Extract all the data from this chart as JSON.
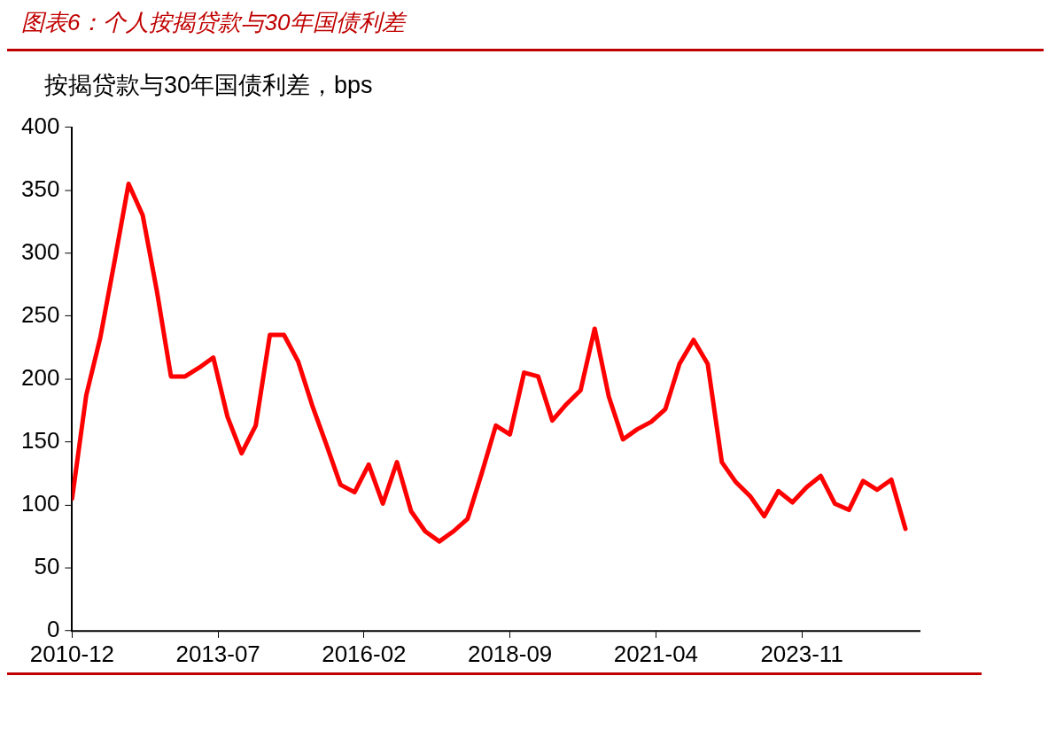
{
  "chart_data": {
    "type": "line",
    "title": "图表6：个人按揭贷款与30年国债利差",
    "subtitle": "按揭贷款与30年国债利差，bps",
    "x": [
      "2010-12",
      "2011-03",
      "2011-06",
      "2011-09",
      "2011-12",
      "2012-03",
      "2012-06",
      "2012-09",
      "2012-12",
      "2013-03",
      "2013-06",
      "2013-09",
      "2013-12",
      "2014-03",
      "2014-06",
      "2014-09",
      "2014-12",
      "2015-03",
      "2015-06",
      "2015-09",
      "2015-12",
      "2016-03",
      "2016-06",
      "2016-09",
      "2016-12",
      "2017-03",
      "2017-06",
      "2017-09",
      "2017-12",
      "2018-03",
      "2018-06",
      "2018-09",
      "2018-12",
      "2019-03",
      "2019-06",
      "2019-09",
      "2019-12",
      "2020-03",
      "2020-06",
      "2020-09",
      "2020-12",
      "2021-03",
      "2021-06",
      "2021-09",
      "2021-12",
      "2022-03",
      "2022-06",
      "2022-09",
      "2022-12",
      "2023-03",
      "2023-06",
      "2023-09",
      "2023-12",
      "2024-03",
      "2024-06",
      "2024-09",
      "2024-12",
      "2025-03",
      "2025-06",
      "2025-09"
    ],
    "series": [
      {
        "color": "#ff0000",
        "values": [
          105,
          187,
          233,
          293,
          355,
          330,
          270,
          202,
          202,
          209,
          217,
          170,
          141,
          163,
          235,
          235,
          214,
          179,
          148,
          116,
          110,
          132,
          101,
          134,
          95,
          79,
          71,
          79,
          89,
          125,
          163,
          156,
          205,
          202,
          167,
          180,
          191,
          240,
          186,
          152,
          160,
          166,
          176,
          212,
          231,
          212,
          134,
          118,
          107,
          91,
          111,
          102,
          114,
          123,
          101,
          96,
          119,
          112,
          120,
          81
        ]
      }
    ],
    "xlim": [
      "2010-12",
      "2025-12"
    ],
    "xticks": [
      "2010-12",
      "2013-07",
      "2016-02",
      "2018-09",
      "2021-04",
      "2023-11"
    ],
    "ylim": [
      0,
      400
    ],
    "yticks": [
      0,
      50,
      100,
      150,
      200,
      250,
      300,
      350,
      400
    ],
    "grid": false,
    "legend": false,
    "marker": "none",
    "line_style": "solid"
  }
}
